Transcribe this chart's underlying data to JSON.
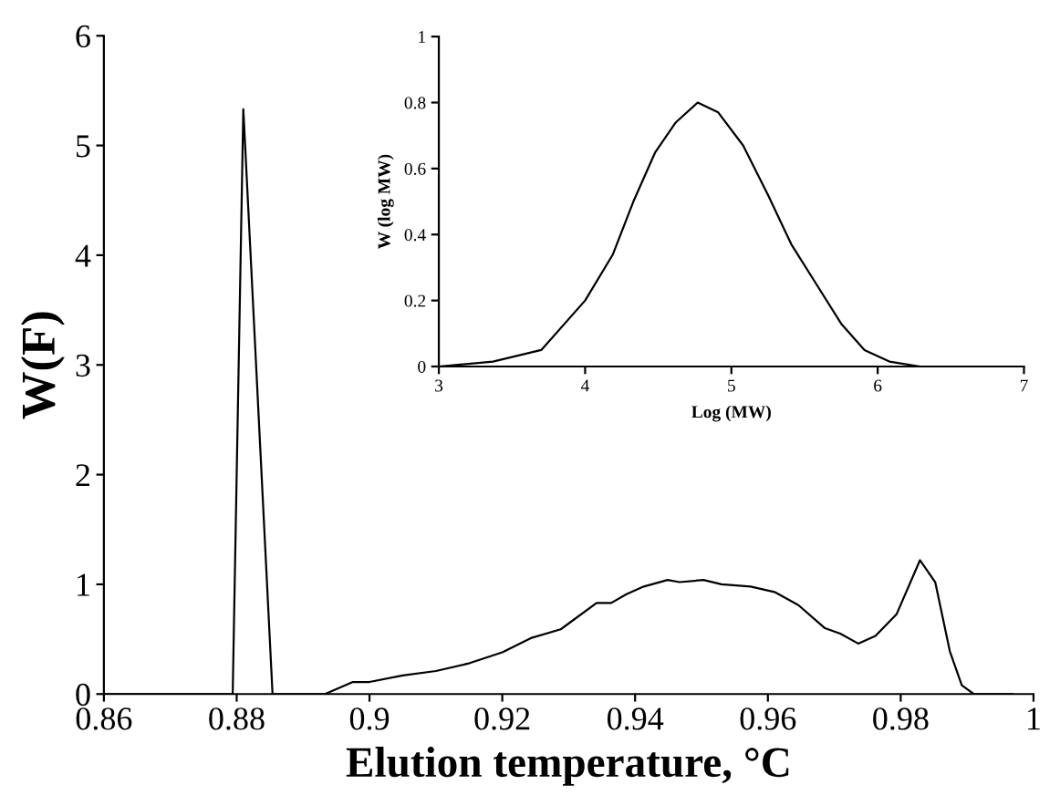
{
  "chart_data": [
    {
      "type": "line",
      "xlabel": "Elution temperature, °C",
      "ylabel": "W(F)",
      "xlim": [
        0.86,
        1
      ],
      "ylim": [
        0,
        6
      ],
      "xticks": [
        0.86,
        0.88,
        0.9,
        0.92,
        0.94,
        0.96,
        0.98,
        1
      ],
      "yticks": [
        0,
        1,
        2,
        3,
        4,
        5,
        6
      ],
      "series": [
        {
          "color": "#000000",
          "x": [
            0.86,
            0.8794,
            0.881,
            0.8854,
            0.8933,
            0.8975,
            0.9,
            0.905,
            0.91,
            0.915,
            0.92,
            0.9243,
            0.9288,
            0.9342,
            0.9364,
            0.9387,
            0.9413,
            0.9449,
            0.9467,
            0.9503,
            0.953,
            0.9574,
            0.961,
            0.9646,
            0.9686,
            0.9709,
            0.9736,
            0.9762,
            0.9794,
            0.9829,
            0.9852,
            0.9874,
            0.9892,
            0.991,
            0.9968
          ],
          "values": [
            0,
            0,
            5.33,
            0,
            0,
            0.11,
            0.11,
            0.17,
            0.21,
            0.28,
            0.38,
            0.51,
            0.59,
            0.83,
            0.83,
            0.91,
            0.98,
            1.04,
            1.02,
            1.04,
            1.0,
            0.98,
            0.93,
            0.81,
            0.6,
            0.55,
            0.46,
            0.53,
            0.73,
            1.22,
            1.02,
            0.39,
            0.08,
            0,
            0
          ]
        }
      ]
    },
    {
      "type": "line",
      "xlabel": "Log (MW)",
      "ylabel": "W (log MW)",
      "xlim": [
        3,
        7
      ],
      "ylim": [
        0,
        1
      ],
      "xticks": [
        3,
        4,
        5,
        6,
        7
      ],
      "yticks": [
        0,
        0.2,
        0.4,
        0.6,
        0.8,
        1
      ],
      "series": [
        {
          "color": "#000000",
          "x": [
            3,
            3.37,
            3.7,
            4,
            4.19,
            4.33,
            4.48,
            4.62,
            4.77,
            4.91,
            5.08,
            5.25,
            5.41,
            5.58,
            5.75,
            5.91,
            6.08,
            6.29,
            6.55
          ],
          "values": [
            0,
            0.015,
            0.05,
            0.2,
            0.34,
            0.5,
            0.65,
            0.74,
            0.8,
            0.77,
            0.67,
            0.52,
            0.37,
            0.25,
            0.13,
            0.05,
            0.015,
            0,
            0
          ]
        }
      ]
    }
  ]
}
